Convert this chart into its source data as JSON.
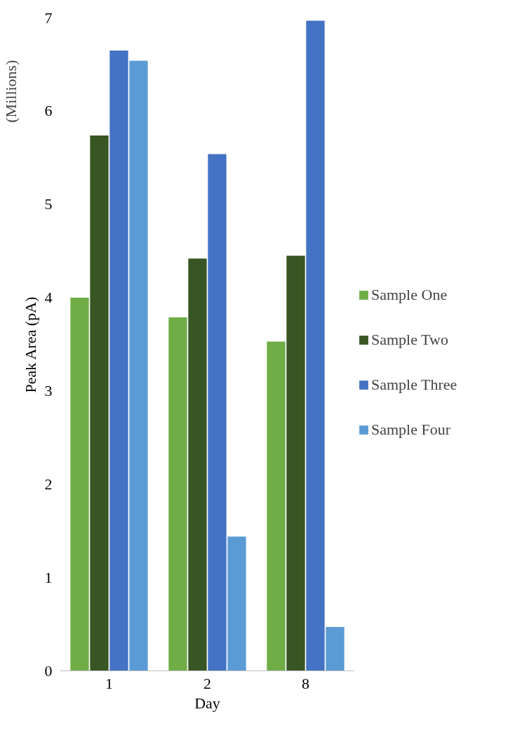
{
  "chart_data": {
    "type": "bar",
    "xlabel": "Day",
    "ylabel": "Peak Area (pA)",
    "annotations": [
      "(Millions)"
    ],
    "categories": [
      "1",
      "2",
      "8"
    ],
    "series": [
      {
        "name": "Sample One",
        "color": "#70ad47",
        "values": [
          4.0,
          3.79,
          3.53
        ]
      },
      {
        "name": "Sample Two",
        "color": "#375623",
        "values": [
          5.74,
          4.42,
          4.45
        ]
      },
      {
        "name": "Sample Three",
        "color": "#4472c4",
        "values": [
          6.65,
          5.54,
          6.97
        ]
      },
      {
        "name": "Sample Four",
        "color": "#5b9bd5",
        "values": [
          6.54,
          1.44,
          0.47
        ]
      }
    ],
    "ylim": [
      0,
      7
    ],
    "yticks": [
      0,
      1,
      2,
      3,
      4,
      5,
      6,
      7
    ],
    "grid": false,
    "legend": "right"
  }
}
